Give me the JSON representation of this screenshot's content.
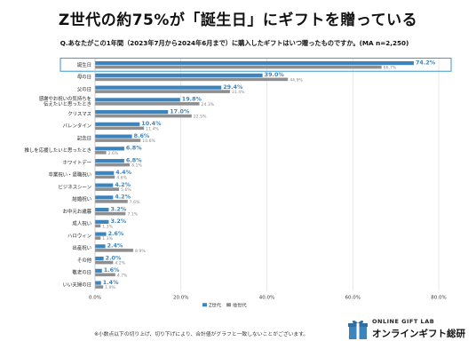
{
  "headline": "Z世代の約75%が「誕生日」にギフトを贈っている",
  "question": "Q.あなたがこの1年間（2023年7月から2024年6月まで）に購入したギフトはいつ贈ったものですか。(MA n=2,250)",
  "footnote": "※小数点以下の切り上げ、切り下げにより、合計値がグラフと一致しないことがございます。",
  "logo": {
    "top_text": "ONLINE GIFT LAB",
    "main_text": "オンラインギフト総研"
  },
  "colors": {
    "z": "#3d84bd",
    "other": "#8f8f8f",
    "highlight": "#4aa0d4",
    "grid": "#d9d9d9"
  },
  "chart_data": {
    "type": "bar",
    "orientation": "horizontal",
    "categories": [
      "誕生日",
      "母の日",
      "父の日",
      "感謝やお祝いの気持ちを伝えたいと思ったとき",
      "クリスマス",
      "バレンタイン",
      "記念日",
      "推しを応援したいと思ったとき",
      "ホワイトデー",
      "卒業祝い・退職祝い",
      "ビジネスシーン",
      "結婚祝い",
      "お中元お歳暮",
      "成人祝い",
      "ハロウィン",
      "出産祝い",
      "その他",
      "敬老の日",
      "いい夫婦の日"
    ],
    "category_lines": [
      [
        "誕生日"
      ],
      [
        "母の日"
      ],
      [
        "父の日"
      ],
      [
        "感謝やお祝いの気持ちを",
        "伝えたいと思ったとき"
      ],
      [
        "クリスマス"
      ],
      [
        "バレンタイン"
      ],
      [
        "記念日"
      ],
      [
        "推しを応援したいと思ったとき"
      ],
      [
        "ホワイトデー"
      ],
      [
        "卒業祝い・退職祝い"
      ],
      [
        "ビジネスシーン"
      ],
      [
        "結婚祝い"
      ],
      [
        "お中元お歳暮"
      ],
      [
        "成人祝い"
      ],
      [
        "ハロウィン"
      ],
      [
        "出産祝い"
      ],
      [
        "その他"
      ],
      [
        "敬老の日"
      ],
      [
        "いい夫婦の日"
      ]
    ],
    "series": [
      {
        "name": "Z世代",
        "values": [
          74.2,
          39.0,
          29.4,
          19.8,
          17.0,
          10.4,
          8.6,
          6.8,
          6.8,
          4.4,
          4.2,
          4.2,
          3.2,
          3.2,
          2.6,
          2.4,
          2.0,
          1.6,
          1.4
        ],
        "labels": [
          "74.2%",
          "39.0%",
          "29.4%",
          "19.8%",
          "17.0%",
          "10.4%",
          "8.6%",
          "6.8%",
          "6.8%",
          "4.4%",
          "4.2%",
          "4.2%",
          "3.2%",
          "3.2%",
          "2.6%",
          "2.4%",
          "2.0%",
          "1.6%",
          "1.4%"
        ]
      },
      {
        "name": "他世代",
        "values": [
          66.7,
          44.9,
          31.4,
          24.3,
          22.5,
          11.4,
          10.6,
          2.6,
          8.1,
          4.6,
          5.6,
          7.6,
          7.1,
          1.3,
          1.3,
          8.9,
          4.2,
          4.7,
          1.9
        ],
        "labels": [
          "66.7%",
          "44.9%",
          "31.4%",
          "24.3%",
          "22.5%",
          "11.4%",
          "10.6%",
          "2.6%",
          "8.1%",
          "4.6%",
          "5.6%",
          "7.6%",
          "7.1%",
          "1.3%",
          "1.3%",
          "8.9%",
          "4.2%",
          "4.7%",
          "1.9%"
        ]
      }
    ],
    "xlim": [
      0,
      80
    ],
    "xticks": [
      "0.0%",
      "20.0%",
      "40.0%",
      "60.0%",
      "80.0%"
    ],
    "xtick_values": [
      0,
      20,
      40,
      60,
      80
    ],
    "highlighted_category": "誕生日",
    "legend_position": "bottom",
    "grid": true
  }
}
